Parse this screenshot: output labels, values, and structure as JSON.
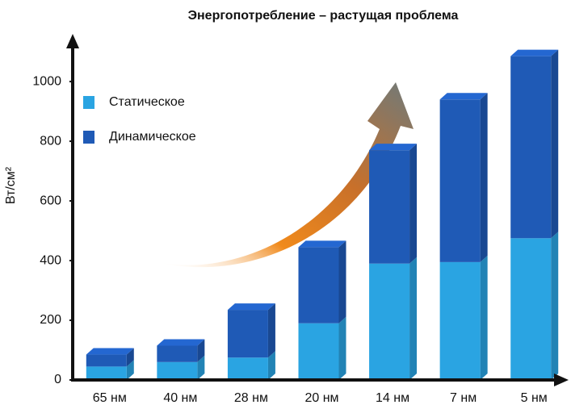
{
  "chart_data": {
    "type": "stacked_bar",
    "title": "Энергопотребление – растущая проблема",
    "y_label": "Вт/см²",
    "categories": [
      "65 нм",
      "40 нм",
      "28 нм",
      "20 нм",
      "14 нм",
      "7 нм",
      "5 нм"
    ],
    "series": [
      {
        "name": "Статическое",
        "color": "#2aa4e2",
        "values": [
          45,
          60,
          75,
          190,
          390,
          395,
          475
        ]
      },
      {
        "name": "Динамическое",
        "color": "#1f5ab6",
        "values": [
          40,
          55,
          160,
          255,
          380,
          545,
          610
        ]
      }
    ],
    "ylim": [
      0,
      1130
    ],
    "yticks": [
      0,
      200,
      400,
      600,
      800,
      1000
    ],
    "legend": "upper left",
    "grid": false
  }
}
